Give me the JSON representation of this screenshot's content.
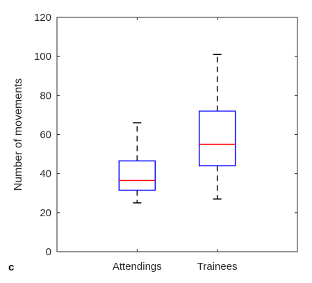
{
  "panel_label": "c",
  "chart_data": {
    "type": "box",
    "title": "",
    "xlabel": "",
    "ylabel": "Number of movements",
    "ylim": [
      0,
      120
    ],
    "yticks": [
      0,
      20,
      40,
      60,
      80,
      100,
      120
    ],
    "categories": [
      "Attendings",
      "Trainees"
    ],
    "boxes": [
      {
        "category": "Attendings",
        "whisker_low": 25,
        "q1": 31.5,
        "median": 36.5,
        "q3": 46.5,
        "whisker_high": 66
      },
      {
        "category": "Trainees",
        "whisker_low": 27,
        "q1": 44,
        "median": 55,
        "q3": 72,
        "whisker_high": 101
      }
    ],
    "grid": false,
    "colors": {
      "box": "#0000ff",
      "median": "#ff0000",
      "whisker": "#000000",
      "axis": "#262626"
    }
  }
}
